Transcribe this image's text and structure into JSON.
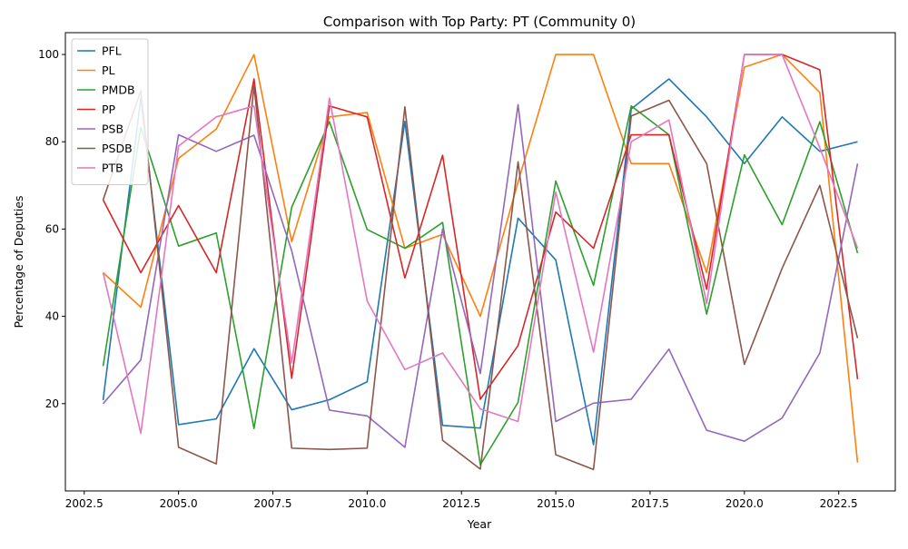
{
  "chart_data": {
    "type": "line",
    "title": "Comparison with Top Party: PT (Community 0)",
    "xlabel": "Year",
    "ylabel": "Percentage of Deputies",
    "xlim": [
      2002.0,
      2024.0
    ],
    "ylim": [
      0,
      105
    ],
    "xticks": [
      2002.5,
      2005.0,
      2007.5,
      2010.0,
      2012.5,
      2015.0,
      2017.5,
      2020.0,
      2022.5
    ],
    "xtick_labels": [
      "2002.5",
      "2005.0",
      "2007.5",
      "2010.0",
      "2012.5",
      "2015.0",
      "2017.5",
      "2020.0",
      "2022.5"
    ],
    "yticks": [
      20,
      40,
      60,
      80,
      100
    ],
    "ytick_labels": [
      "20",
      "40",
      "60",
      "80",
      "100"
    ],
    "grid": false,
    "legend_position": "top-left",
    "x": [
      2003,
      2004,
      2005,
      2006,
      2007,
      2008,
      2009,
      2010,
      2011,
      2012,
      2013,
      2014,
      2015,
      2016,
      2017,
      2018,
      2019,
      2020,
      2021,
      2022,
      2023
    ],
    "series": [
      {
        "name": "PFL",
        "color": "#1f77b4",
        "values": [
          20.8,
          90.0,
          15.2,
          16.5,
          32.6,
          18.6,
          20.9,
          25.0,
          84.7,
          15.0,
          14.4,
          62.5,
          52.9,
          10.6,
          87.5,
          94.4,
          85.7,
          75.0,
          85.7,
          77.8,
          80.0
        ]
      },
      {
        "name": "PL",
        "color": "#ff7f0e",
        "values": [
          50.0,
          42.1,
          76.2,
          82.9,
          100.0,
          57.1,
          85.7,
          86.7,
          55.6,
          58.8,
          40.0,
          70.8,
          100.0,
          100.0,
          75.0,
          75.0,
          50.0,
          97.1,
          100.0,
          91.3,
          6.5
        ]
      },
      {
        "name": "PMDB",
        "color": "#2ca02c",
        "values": [
          28.6,
          83.3,
          56.1,
          59.1,
          14.3,
          65.0,
          84.6,
          59.9,
          55.6,
          61.5,
          6.0,
          20.3,
          71.0,
          47.1,
          88.2,
          81.6,
          40.5,
          77.0,
          61.0,
          84.6,
          54.5
        ]
      },
      {
        "name": "PP",
        "color": "#d62728",
        "values": [
          66.7,
          50.0,
          65.4,
          50.0,
          94.4,
          25.8,
          88.2,
          85.7,
          48.8,
          76.9,
          21.0,
          33.3,
          63.9,
          55.6,
          81.6,
          81.6,
          46.2,
          100.0,
          100.0,
          96.5,
          25.6
        ]
      },
      {
        "name": "PSB",
        "color": "#9467bd",
        "values": [
          20.0,
          30.0,
          81.6,
          77.8,
          81.5,
          55.0,
          18.5,
          17.2,
          10.0,
          60.0,
          26.9,
          88.5,
          15.9,
          20.1,
          21.0,
          32.5,
          13.9,
          11.4,
          16.7,
          31.6,
          75.0
        ]
      },
      {
        "name": "PSDB",
        "color": "#8c564b",
        "values": [
          66.7,
          91.7,
          10.0,
          6.2,
          92.9,
          9.8,
          9.5,
          9.8,
          88.0,
          11.6,
          5.0,
          75.4,
          8.3,
          4.9,
          85.9,
          89.5,
          75.0,
          29.0,
          51.0,
          70.0,
          35.0
        ]
      },
      {
        "name": "PTB",
        "color": "#e377c2",
        "values": [
          50.0,
          13.2,
          79.0,
          85.7,
          88.2,
          29.3,
          90.0,
          43.5,
          27.8,
          31.6,
          18.8,
          15.9,
          68.5,
          31.8,
          80.0,
          85.0,
          42.9,
          100.0,
          100.0,
          78.6,
          55.6
        ]
      }
    ]
  }
}
